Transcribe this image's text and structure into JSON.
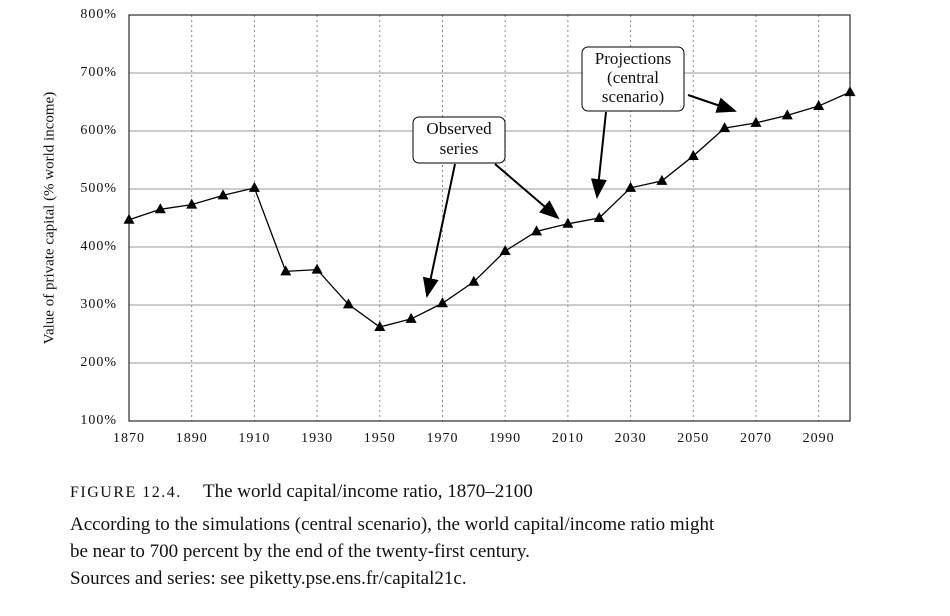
{
  "chart_data": {
    "type": "line",
    "y_label": "Value of private capital (% world income)",
    "x": [
      1870,
      1880,
      1890,
      1900,
      1910,
      1920,
      1930,
      1940,
      1950,
      1960,
      1970,
      1980,
      1990,
      2000,
      2010,
      2020,
      2030,
      2040,
      2050,
      2060,
      2070,
      2080,
      2090,
      2100
    ],
    "values": [
      447,
      465,
      473,
      489,
      502,
      358,
      361,
      301,
      262,
      276,
      303,
      340,
      393,
      427,
      440,
      450,
      502,
      514,
      557,
      605,
      614,
      627,
      643,
      667
    ],
    "color": "#000000",
    "xlim": [
      1870,
      2100
    ],
    "xticks": [
      1870,
      1890,
      1910,
      1930,
      1950,
      1970,
      1990,
      2010,
      2030,
      2050,
      2070,
      2090
    ],
    "ylim": [
      100,
      800
    ],
    "yticks": [
      {
        "value": 100,
        "label": "100%"
      },
      {
        "value": 200,
        "label": "200%"
      },
      {
        "value": 300,
        "label": "300%"
      },
      {
        "value": 400,
        "label": "400%"
      },
      {
        "value": 500,
        "label": "500%"
      },
      {
        "value": 600,
        "label": "600%"
      },
      {
        "value": 700,
        "label": "700%"
      },
      {
        "value": 800,
        "label": "800%"
      }
    ],
    "grid": true,
    "annotations": [
      {
        "lines": [
          "Observed",
          "series"
        ]
      },
      {
        "lines": [
          "Projections",
          "(central",
          "scenario)"
        ]
      }
    ]
  },
  "caption": {
    "label": "FIGURE 12.4.",
    "title": "The world capital/income ratio, 1870–2100",
    "lines": [
      "According to the simulations (central scenario), the world capital/income ratio might",
      "be near to 700 percent by the end of the twenty-first century.",
      "Sources and series: see piketty.pse.ens.fr/capital21c."
    ]
  }
}
